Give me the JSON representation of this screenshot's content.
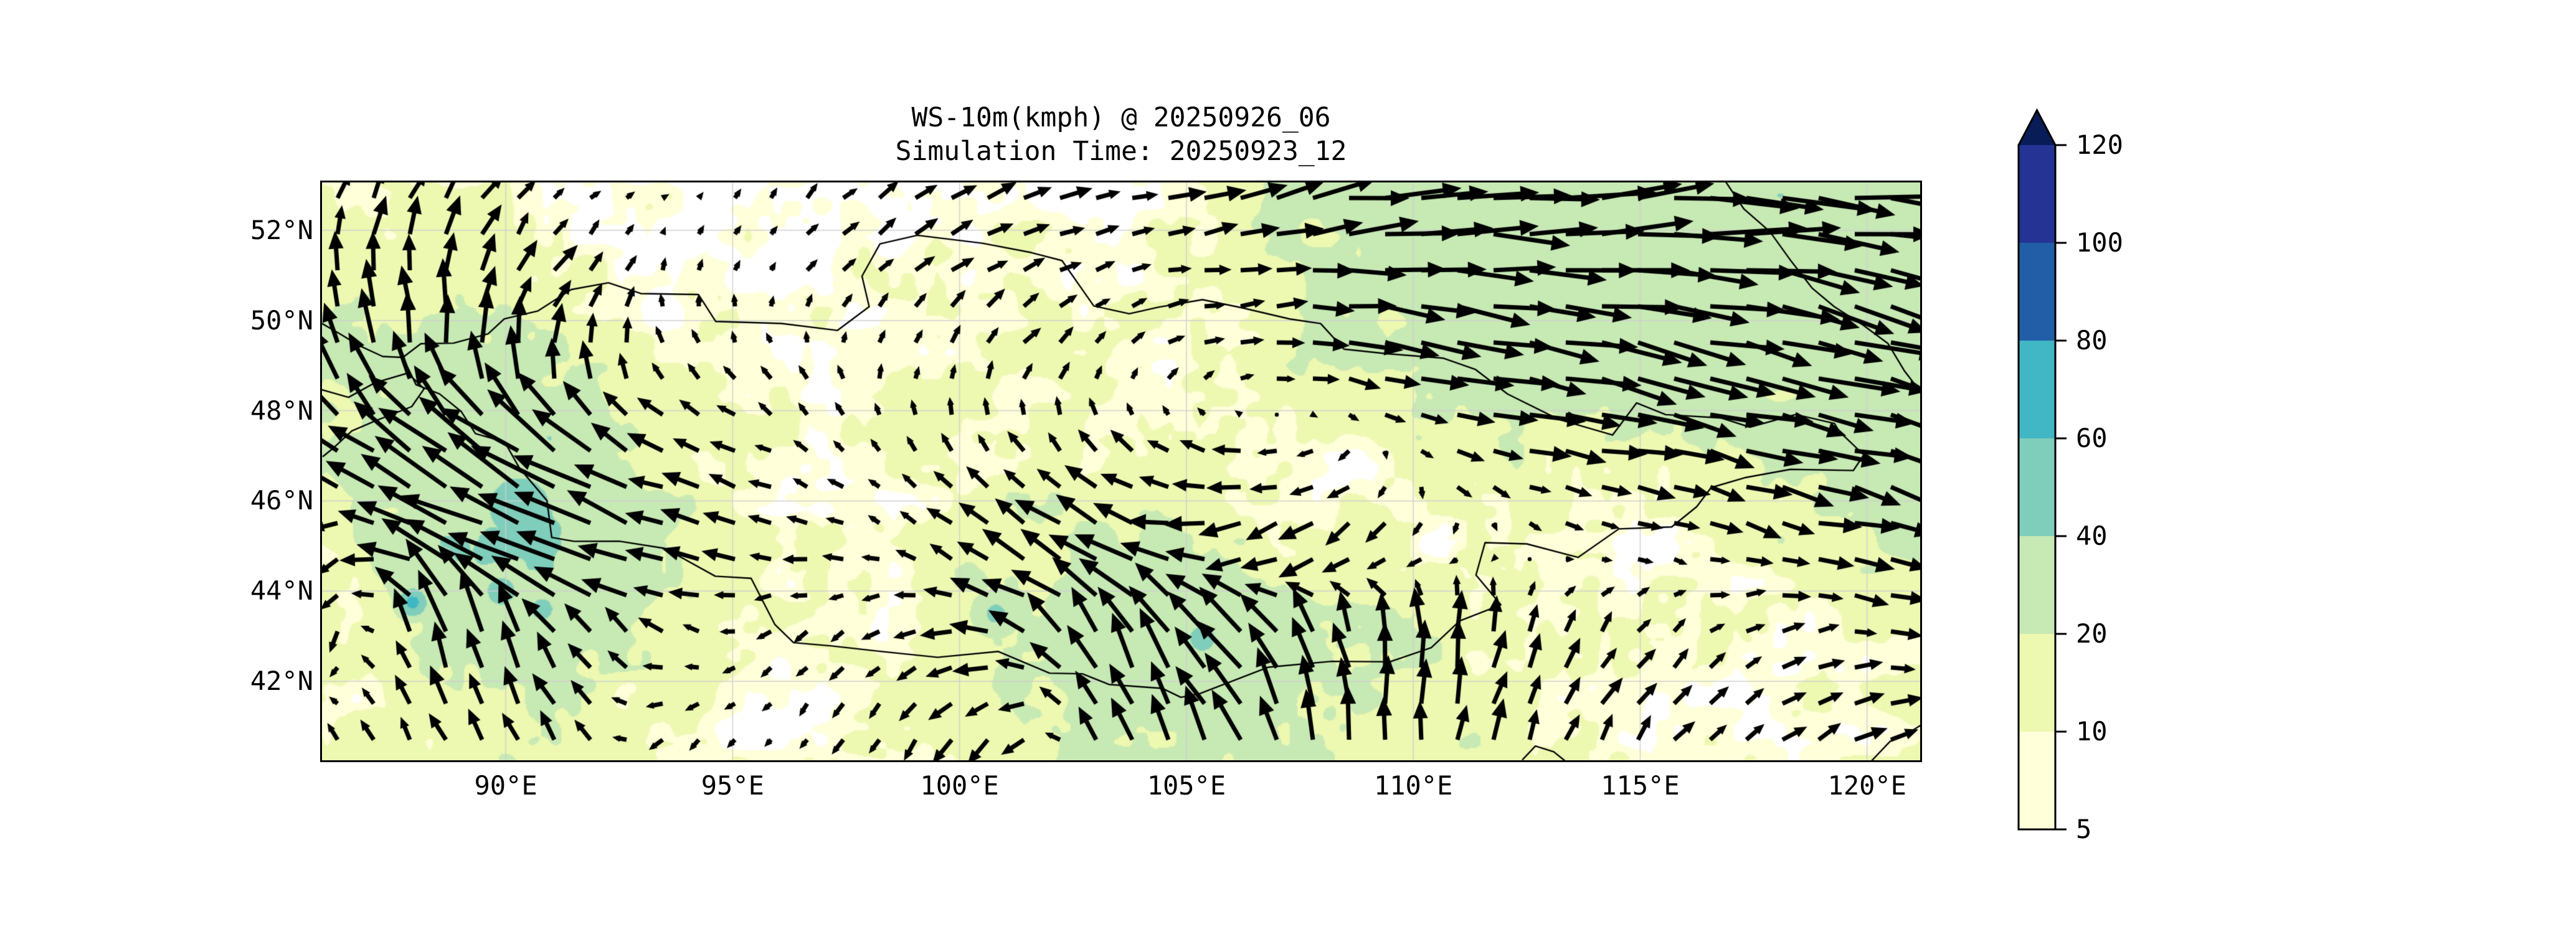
{
  "figure": {
    "title_line1": "WS-10m(kmph) @ 20250926_06",
    "title_line2": "Simulation Time: 20250923_12"
  },
  "chart_data": {
    "type": "heatmap",
    "subtype": "filled-contour-map-with-wind-quiver",
    "variable": "WS-10m",
    "units": "kmph",
    "valid_time": "20250926_06",
    "simulation_time": "20250923_12",
    "lon_range": [
      85.95,
      121.17
    ],
    "lat_range": [
      40.25,
      53.06
    ],
    "grid_on": true,
    "x_ticks": [
      {
        "value": 90,
        "label": "90°E"
      },
      {
        "value": 95,
        "label": "95°E"
      },
      {
        "value": 100,
        "label": "100°E"
      },
      {
        "value": 105,
        "label": "105°E"
      },
      {
        "value": 110,
        "label": "110°E"
      },
      {
        "value": 115,
        "label": "115°E"
      },
      {
        "value": 120,
        "label": "120°E"
      }
    ],
    "y_ticks": [
      {
        "value": 52,
        "label": "52°N"
      },
      {
        "value": 50,
        "label": "50°N"
      },
      {
        "value": 48,
        "label": "48°N"
      },
      {
        "value": 46,
        "label": "46°N"
      },
      {
        "value": 44,
        "label": "44°N"
      },
      {
        "value": 42,
        "label": "42°N"
      }
    ],
    "levels": [
      5,
      10,
      20,
      40,
      60,
      80,
      100,
      120
    ],
    "band_colors": [
      "#ffffd9",
      "#edf8b1",
      "#c7e9b4",
      "#7fcdbb",
      "#41b6c4",
      "#225ea8",
      "#253494"
    ],
    "over_color": "#081d58",
    "under_color": "#ffffff",
    "colorbar_tick_labels": [
      "120",
      "100",
      "80",
      "60",
      "40",
      "20",
      "10",
      "5"
    ],
    "legend_position": "right",
    "styles": {
      "arrow_color": "#000000",
      "gridline_color": "#cfcfcf",
      "border_color": "#000000"
    },
    "wind_grid": {
      "lons": [
        86,
        88.5,
        91,
        93.5,
        96,
        98.5,
        101,
        103.5,
        106,
        108.5,
        111,
        113.5,
        116,
        118.5,
        121
      ],
      "lats": [
        53,
        51,
        49,
        47,
        45,
        43,
        41
      ],
      "u": [
        [
          10,
          14,
          8,
          4,
          6,
          14,
          20,
          20,
          28,
          45,
          52,
          58,
          60,
          62,
          58
        ],
        [
          -6,
          6,
          12,
          2,
          5,
          12,
          15,
          12,
          20,
          40,
          48,
          54,
          56,
          58,
          52
        ],
        [
          -18,
          -8,
          8,
          -6,
          -6,
          2,
          8,
          8,
          14,
          30,
          40,
          48,
          52,
          52,
          46
        ],
        [
          -25,
          -42,
          -48,
          -25,
          -12,
          -6,
          -8,
          -16,
          -22,
          -12,
          18,
          30,
          34,
          38,
          42
        ],
        [
          -12,
          -50,
          -60,
          -30,
          -18,
          -10,
          -25,
          -38,
          -28,
          -20,
          -8,
          6,
          12,
          24,
          30
        ],
        [
          -8,
          -10,
          -20,
          -15,
          -8,
          -12,
          -28,
          -22,
          -30,
          -12,
          4,
          8,
          10,
          14,
          20
        ],
        [
          -6,
          -8,
          -12,
          -8,
          -4,
          -8,
          -14,
          -10,
          -16,
          -6,
          6,
          10,
          12,
          16,
          22
        ]
      ],
      "v": [
        [
          18,
          22,
          6,
          2,
          8,
          10,
          8,
          5,
          8,
          8,
          5,
          6,
          4,
          -4,
          -8
        ],
        [
          26,
          30,
          18,
          8,
          6,
          10,
          8,
          4,
          2,
          0,
          -4,
          -4,
          -6,
          -10,
          -12
        ],
        [
          30,
          38,
          30,
          12,
          8,
          10,
          12,
          8,
          4,
          -4,
          -8,
          -10,
          -12,
          -14,
          -10
        ],
        [
          18,
          30,
          35,
          10,
          6,
          8,
          14,
          12,
          4,
          -6,
          -6,
          -6,
          -8,
          -8,
          -12
        ],
        [
          -14,
          22,
          28,
          6,
          2,
          4,
          18,
          16,
          -10,
          -18,
          -8,
          -4,
          -5,
          -6,
          -8
        ],
        [
          -24,
          42,
          30,
          8,
          -6,
          -8,
          6,
          40,
          28,
          34,
          30,
          18,
          8,
          6,
          -6
        ],
        [
          10,
          18,
          22,
          -8,
          -6,
          -12,
          -18,
          30,
          34,
          36,
          28,
          20,
          12,
          10,
          8
        ]
      ]
    },
    "speed_field": {
      "values": [
        [
          10,
          12,
          5,
          4,
          4,
          5,
          6,
          6,
          18,
          26,
          28,
          30,
          32,
          33,
          30
        ],
        [
          15,
          20,
          14,
          6,
          6,
          8,
          8,
          7,
          12,
          24,
          28,
          30,
          31,
          32,
          28
        ],
        [
          24,
          27,
          20,
          10,
          8,
          9,
          11,
          9,
          10,
          18,
          24,
          28,
          30,
          30,
          26
        ],
        [
          20,
          32,
          38,
          16,
          9,
          8,
          11,
          13,
          11,
          7,
          14,
          18,
          18,
          20,
          24
        ],
        [
          10,
          36,
          48,
          20,
          11,
          8,
          18,
          25,
          14,
          11,
          7,
          6,
          7,
          14,
          22
        ],
        [
          12,
          22,
          30,
          14,
          7,
          7,
          18,
          30,
          38,
          24,
          18,
          9,
          6,
          8,
          12
        ],
        [
          8,
          14,
          18,
          10,
          6,
          8,
          16,
          25,
          22,
          20,
          15,
          10,
          7,
          8,
          12
        ]
      ]
    },
    "hotspots": [
      {
        "lon": 90.3,
        "lat": 45.85,
        "value": 52,
        "r": 0.9
      },
      {
        "lon": 89.9,
        "lat": 44.0,
        "value": 46,
        "r": 0.55
      },
      {
        "lon": 87.95,
        "lat": 43.75,
        "value": 66,
        "r": 0.3
      },
      {
        "lon": 90.8,
        "lat": 43.6,
        "value": 44,
        "r": 0.5
      },
      {
        "lon": 105.35,
        "lat": 42.95,
        "value": 46,
        "r": 0.5
      },
      {
        "lon": 100.8,
        "lat": 43.5,
        "value": 44,
        "r": 0.45
      }
    ],
    "borders": [
      [
        [
          87.75,
          49.2
        ],
        [
          88.0,
          48.6
        ],
        [
          88.55,
          48.35
        ],
        [
          89.0,
          48.0
        ],
        [
          89.3,
          47.5
        ],
        [
          90.0,
          47.3
        ],
        [
          90.3,
          46.7
        ],
        [
          90.9,
          46.0
        ],
        [
          91.0,
          45.2
        ],
        [
          91.5,
          45.1
        ],
        [
          92.5,
          45.1
        ],
        [
          93.5,
          44.95
        ],
        [
          94.6,
          44.35
        ],
        [
          95.4,
          44.3
        ],
        [
          95.9,
          43.25
        ],
        [
          96.35,
          42.85
        ],
        [
          97.2,
          42.8
        ],
        [
          98.25,
          42.65
        ],
        [
          99.5,
          42.55
        ],
        [
          100.85,
          42.65
        ],
        [
          102.0,
          42.2
        ],
        [
          102.7,
          42.15
        ],
        [
          103.3,
          41.9
        ],
        [
          104.5,
          41.87
        ],
        [
          104.9,
          41.65
        ],
        [
          105.3,
          41.75
        ],
        [
          106.8,
          42.3
        ],
        [
          108.2,
          42.45
        ],
        [
          109.5,
          42.45
        ],
        [
          110.4,
          42.75
        ],
        [
          111.0,
          43.35
        ],
        [
          111.95,
          43.7
        ],
        [
          111.4,
          44.35
        ],
        [
          111.55,
          45.05
        ],
        [
          112.5,
          45.05
        ],
        [
          113.65,
          44.75
        ],
        [
          114.55,
          45.4
        ],
        [
          115.7,
          45.4
        ],
        [
          116.25,
          45.9
        ],
        [
          116.55,
          46.3
        ],
        [
          117.35,
          46.55
        ],
        [
          118.3,
          46.7
        ],
        [
          119.7,
          46.65
        ],
        [
          119.9,
          47.0
        ],
        [
          119.35,
          47.5
        ],
        [
          119.25,
          47.7
        ],
        [
          118.45,
          47.95
        ],
        [
          117.4,
          47.65
        ],
        [
          116.75,
          47.85
        ],
        [
          115.55,
          47.9
        ],
        [
          114.95,
          48.15
        ],
        [
          114.4,
          47.45
        ],
        [
          113.2,
          47.8
        ],
        [
          112.05,
          48.35
        ],
        [
          111.35,
          48.9
        ],
        [
          110.65,
          49.15
        ],
        [
          109.4,
          49.3
        ],
        [
          108.5,
          49.35
        ],
        [
          107.95,
          49.95
        ],
        [
          107.3,
          50.05
        ],
        [
          106.2,
          50.3
        ],
        [
          105.35,
          50.45
        ],
        [
          104.4,
          50.3
        ],
        [
          103.75,
          50.15
        ],
        [
          102.95,
          50.3
        ],
        [
          102.25,
          51.3
        ],
        [
          101.55,
          51.5
        ],
        [
          100.5,
          51.7
        ],
        [
          99.05,
          51.9
        ],
        [
          98.25,
          51.7
        ],
        [
          97.85,
          51.0
        ],
        [
          98.0,
          50.3
        ],
        [
          97.3,
          49.75
        ],
        [
          96.05,
          49.9
        ],
        [
          94.6,
          50.0
        ],
        [
          94.25,
          50.55
        ],
        [
          93.0,
          50.6
        ],
        [
          92.25,
          50.8
        ],
        [
          91.45,
          50.7
        ],
        [
          90.7,
          50.2
        ],
        [
          90.0,
          50.0
        ],
        [
          89.6,
          49.7
        ],
        [
          88.85,
          49.5
        ],
        [
          88.15,
          49.5
        ],
        [
          87.75,
          49.2
        ]
      ],
      [
        [
          85.95,
          49.95
        ],
        [
          86.35,
          49.7
        ],
        [
          86.8,
          49.45
        ],
        [
          87.3,
          49.2
        ],
        [
          87.75,
          49.2
        ]
      ],
      [
        [
          85.95,
          48.45
        ],
        [
          86.55,
          48.3
        ],
        [
          87.15,
          48.65
        ],
        [
          87.85,
          48.85
        ],
        [
          88.2,
          48.5
        ],
        [
          87.9,
          48.1
        ],
        [
          87.15,
          47.8
        ],
        [
          86.6,
          47.55
        ],
        [
          86.2,
          47.2
        ],
        [
          85.95,
          47.0
        ]
      ],
      [
        [
          116.9,
          53.06
        ],
        [
          117.3,
          52.45
        ],
        [
          117.85,
          51.95
        ],
        [
          118.35,
          51.3
        ],
        [
          118.8,
          50.7
        ],
        [
          119.3,
          50.3
        ],
        [
          119.9,
          49.9
        ],
        [
          120.45,
          49.5
        ],
        [
          120.8,
          48.9
        ],
        [
          121.17,
          48.45
        ]
      ],
      [
        [
          112.4,
          40.25
        ],
        [
          112.7,
          40.55
        ],
        [
          113.1,
          40.45
        ],
        [
          113.35,
          40.25
        ]
      ],
      [
        [
          120.1,
          40.25
        ],
        [
          120.5,
          40.7
        ],
        [
          120.9,
          40.85
        ],
        [
          121.17,
          41.05
        ]
      ]
    ]
  }
}
